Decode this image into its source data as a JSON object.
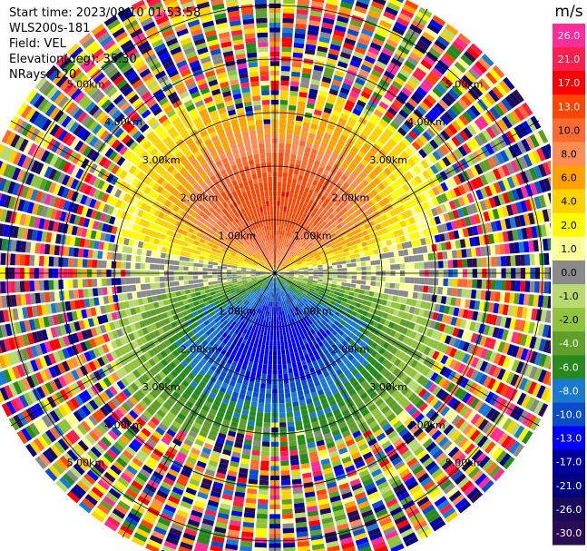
{
  "info": {
    "start_time": "Start time: 2023/08/10 01:53:58",
    "instrument": "WLS200s-181",
    "field": "Field: VEL",
    "elevation": "Elevation(deg): 35.30",
    "nrays": "NRays: 120"
  },
  "chart_data": {
    "type": "heatmap",
    "subtype": "radar-ppi",
    "field": "VEL",
    "units": "m/s",
    "range_rings_km": [
      1.0,
      2.0,
      3.0,
      4.0,
      5.0
    ],
    "ring_labels": [
      "1.00km",
      "2.00km",
      "3.00km",
      "4.00km",
      "5.00km"
    ],
    "max_range_km": 5.7,
    "nrays": 120,
    "spokes_deg": [
      0,
      30,
      60,
      90,
      120,
      150,
      180,
      210,
      240,
      270,
      300,
      330
    ],
    "pattern": "Positive (toward orange/red, ~+4 to +13 m/s) velocities dominate the northern half near the radar; negative (green/blue, ~-4 to -13 m/s) velocities dominate the southern half; near-zero grey along the east-west axis; beyond ~2.5-3.5 km returns become noisy with all colors.",
    "colorbar": {
      "unit_label": "m/s",
      "tick_labels": [
        "26.0",
        "21.0",
        "17.0",
        "13.0",
        "10.0",
        "8.0",
        "6.0",
        "4.0",
        "2.0",
        "1.0",
        "0.0",
        "-1.0",
        "-2.0",
        "-4.0",
        "-6.0",
        "-8.0",
        "-10.0",
        "-13.0",
        "-17.0",
        "-21.0",
        "-26.0",
        "-30.0"
      ],
      "colors": [
        "#ff2d9a",
        "#ff1f4d",
        "#ff0000",
        "#ff4500",
        "#ff6a30",
        "#ff8c55",
        "#ffa200",
        "#ffd200",
        "#fffb00",
        "#ffff99",
        "#8a8a8a",
        "#b8d870",
        "#8fc43a",
        "#5f9e2a",
        "#268a1e",
        "#1a7ad0",
        "#0a4cc9",
        "#0000ff",
        "#00009c",
        "#000080",
        "#1a0a5a",
        "#2b0d55"
      ]
    }
  }
}
